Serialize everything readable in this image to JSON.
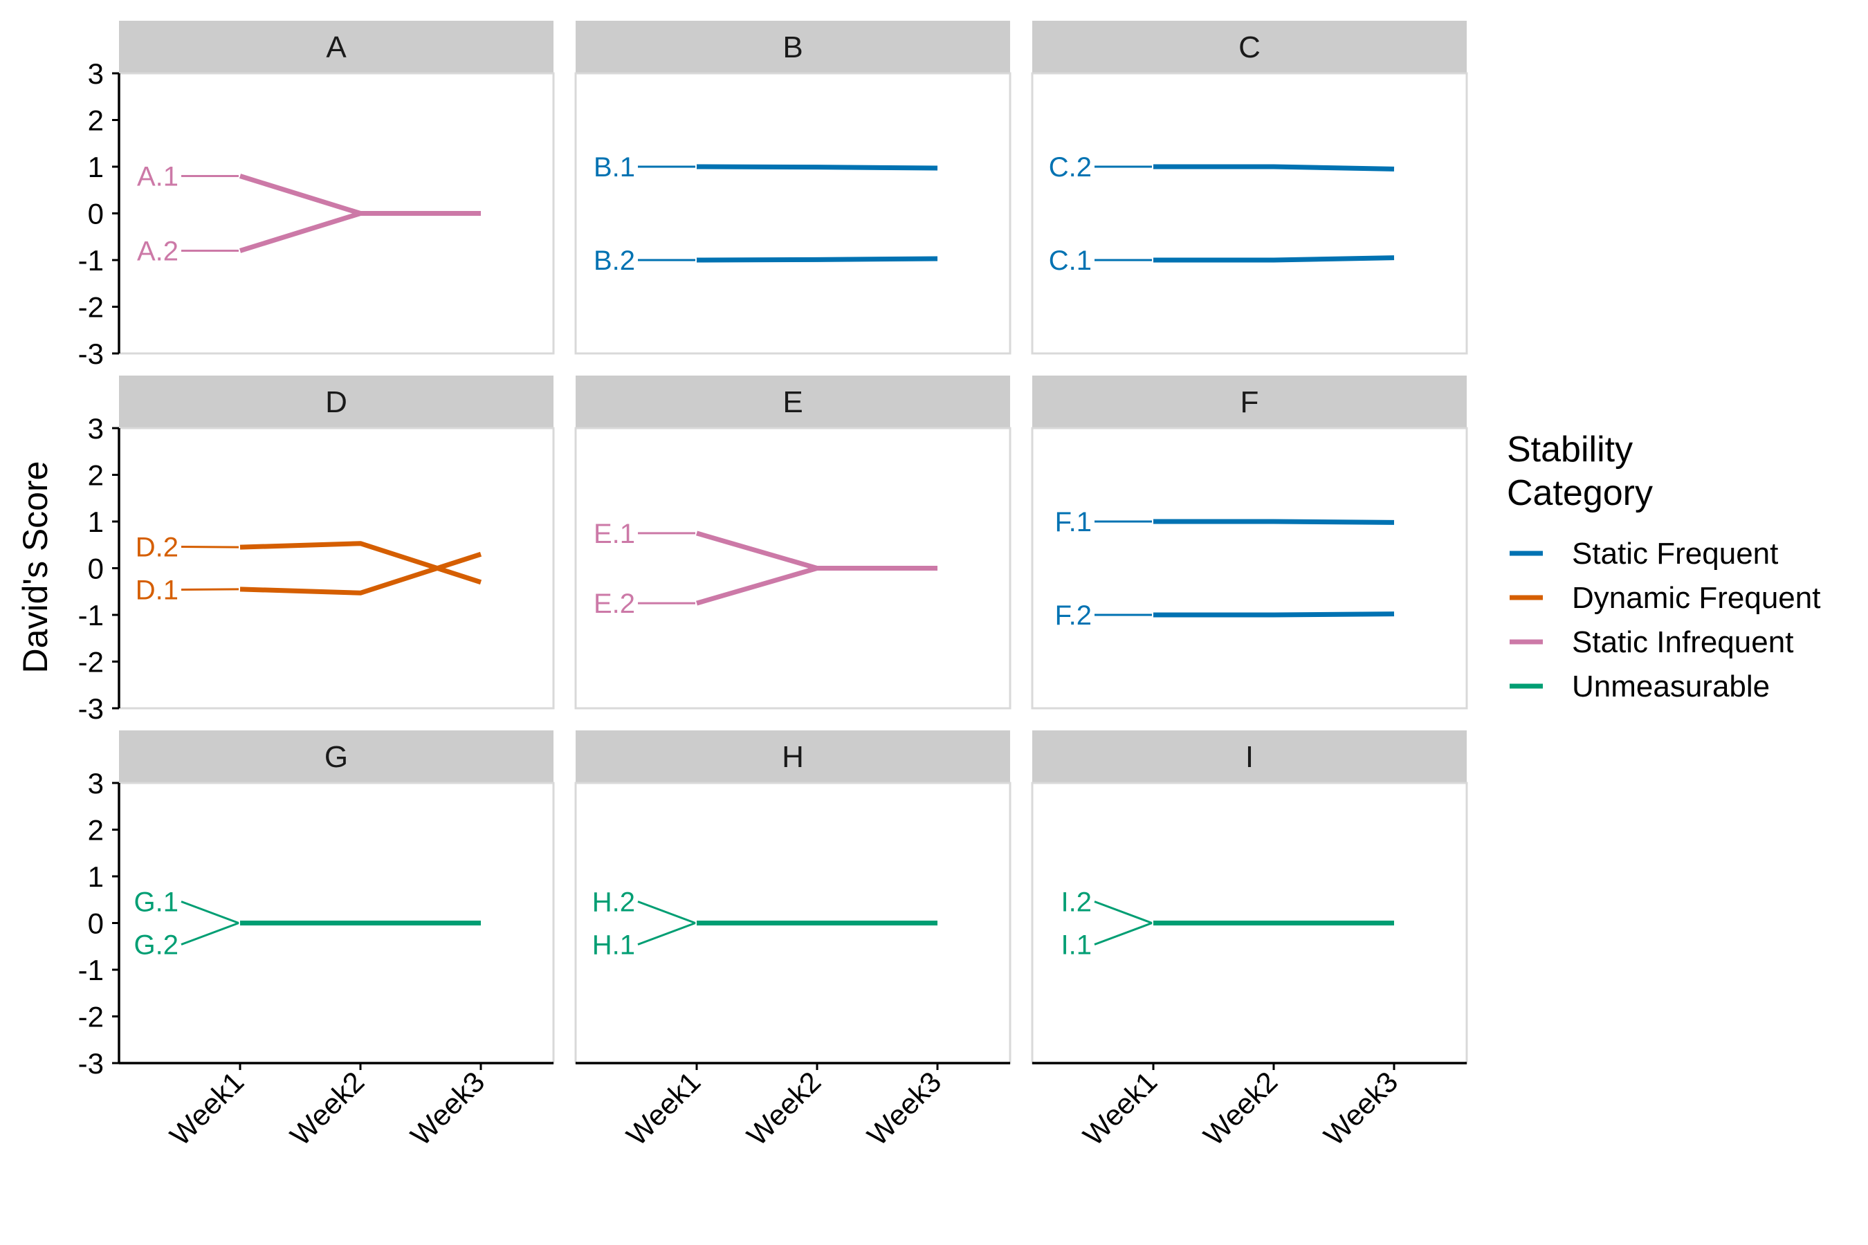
{
  "chart_data": {
    "type": "line",
    "ylabel": "David's Score",
    "xlabel": "",
    "categories": [
      "Week1",
      "Week2",
      "Week3"
    ],
    "ylim": [
      -3,
      3
    ],
    "yticks": [
      "-3",
      "-2",
      "-1",
      "0",
      "1",
      "2",
      "3"
    ],
    "grid": false,
    "legend": {
      "title": [
        "Stability",
        "Category"
      ],
      "position": "right",
      "entries": [
        {
          "name": "Static Frequent",
          "color": "#0072B2"
        },
        {
          "name": "Dynamic Frequent",
          "color": "#D55E00"
        },
        {
          "name": "Static Infrequent",
          "color": "#CC79A7"
        },
        {
          "name": "Unmeasurable",
          "color": "#009E73"
        }
      ]
    },
    "panels": [
      {
        "title": "A",
        "category": "Static Infrequent",
        "series": [
          {
            "name": "A.1",
            "values": [
              0.8,
              0,
              0
            ]
          },
          {
            "name": "A.2",
            "values": [
              -0.8,
              0,
              0
            ]
          }
        ]
      },
      {
        "title": "B",
        "category": "Static Frequent",
        "series": [
          {
            "name": "B.1",
            "values": [
              1,
              0.99,
              0.97
            ]
          },
          {
            "name": "B.2",
            "values": [
              -1,
              -0.99,
              -0.97
            ]
          }
        ]
      },
      {
        "title": "C",
        "category": "Static Frequent",
        "series": [
          {
            "name": "C.2",
            "values": [
              1,
              1,
              0.95
            ]
          },
          {
            "name": "C.1",
            "values": [
              -1,
              -1,
              -0.95
            ]
          }
        ]
      },
      {
        "title": "D",
        "category": "Dynamic Frequent",
        "series": [
          {
            "name": "D.2",
            "values": [
              0.45,
              0.53,
              -0.3
            ]
          },
          {
            "name": "D.1",
            "values": [
              -0.45,
              -0.53,
              0.3
            ]
          }
        ]
      },
      {
        "title": "E",
        "category": "Static Infrequent",
        "series": [
          {
            "name": "E.1",
            "values": [
              0.75,
              0,
              0
            ]
          },
          {
            "name": "E.2",
            "values": [
              -0.75,
              0,
              0
            ]
          }
        ]
      },
      {
        "title": "F",
        "category": "Static Frequent",
        "series": [
          {
            "name": "F.1",
            "values": [
              1,
              1,
              0.98
            ]
          },
          {
            "name": "F.2",
            "values": [
              -1,
              -1,
              -0.98
            ]
          }
        ]
      },
      {
        "title": "G",
        "category": "Unmeasurable",
        "series": [
          {
            "name": "G.1",
            "values": [
              0,
              0,
              0
            ]
          },
          {
            "name": "G.2",
            "values": [
              0,
              0,
              0
            ]
          }
        ]
      },
      {
        "title": "H",
        "category": "Unmeasurable",
        "series": [
          {
            "name": "H.2",
            "values": [
              0,
              0,
              0
            ]
          },
          {
            "name": "H.1",
            "values": [
              0,
              0,
              0
            ]
          }
        ]
      },
      {
        "title": "I",
        "category": "Unmeasurable",
        "series": [
          {
            "name": "I.2",
            "values": [
              0,
              0,
              0
            ]
          },
          {
            "name": "I.1",
            "values": [
              0,
              0,
              0
            ]
          }
        ]
      }
    ]
  }
}
